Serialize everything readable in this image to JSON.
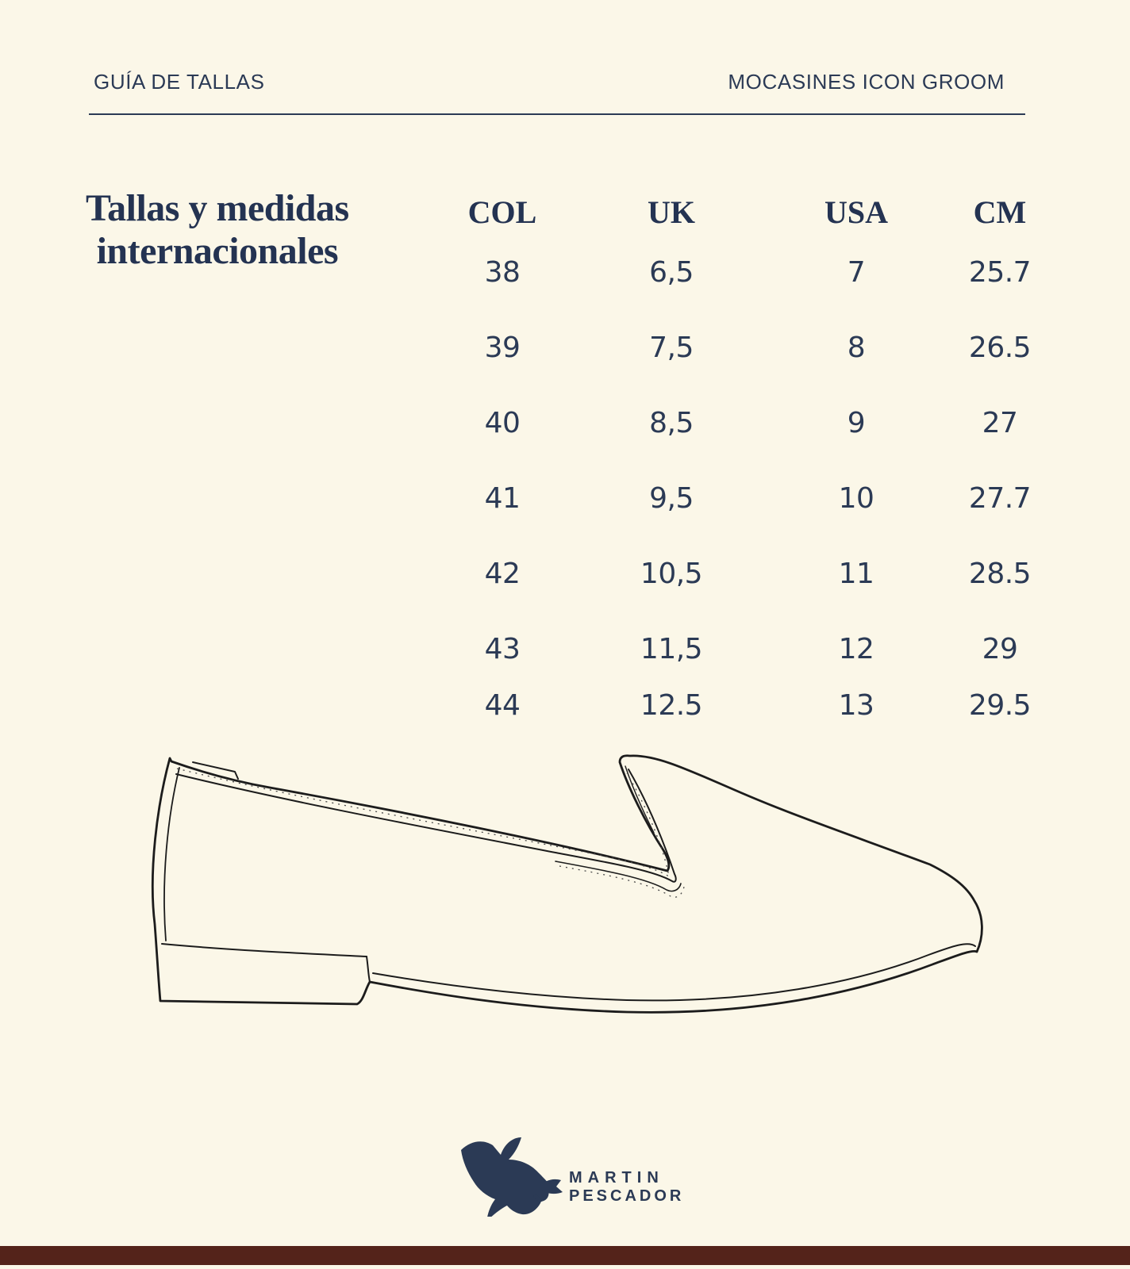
{
  "page": {
    "background_color": "#FBF7E8",
    "text_color_navy": "#2B3A55",
    "footer_bar_color": "#54231A"
  },
  "header": {
    "left": "GUÍA DE TALLAS",
    "right": "MOCASINES ICON GROOM"
  },
  "title": {
    "line1": "Tallas y medidas",
    "line2": "internacionales"
  },
  "size_table": {
    "columns": [
      "COL",
      "UK",
      "USA",
      "CM"
    ],
    "rows": [
      [
        "38",
        "6,5",
        "7",
        "25.7"
      ],
      [
        "39",
        "7,5",
        "8",
        "26.5"
      ],
      [
        "40",
        "8,5",
        "9",
        "27"
      ],
      [
        "41",
        "9,5",
        "10",
        "27.7"
      ],
      [
        "42",
        "10,5",
        "11",
        "28.5"
      ],
      [
        "43",
        "11,5",
        "12",
        "29"
      ],
      [
        "44",
        "12.5",
        "13",
        "29.5"
      ]
    ]
  },
  "illustration": {
    "description": "loafer-line-drawing"
  },
  "logo": {
    "icon": "kingfisher-bird-icon",
    "line1": "MARTIN",
    "line2": "PESCADOR"
  }
}
